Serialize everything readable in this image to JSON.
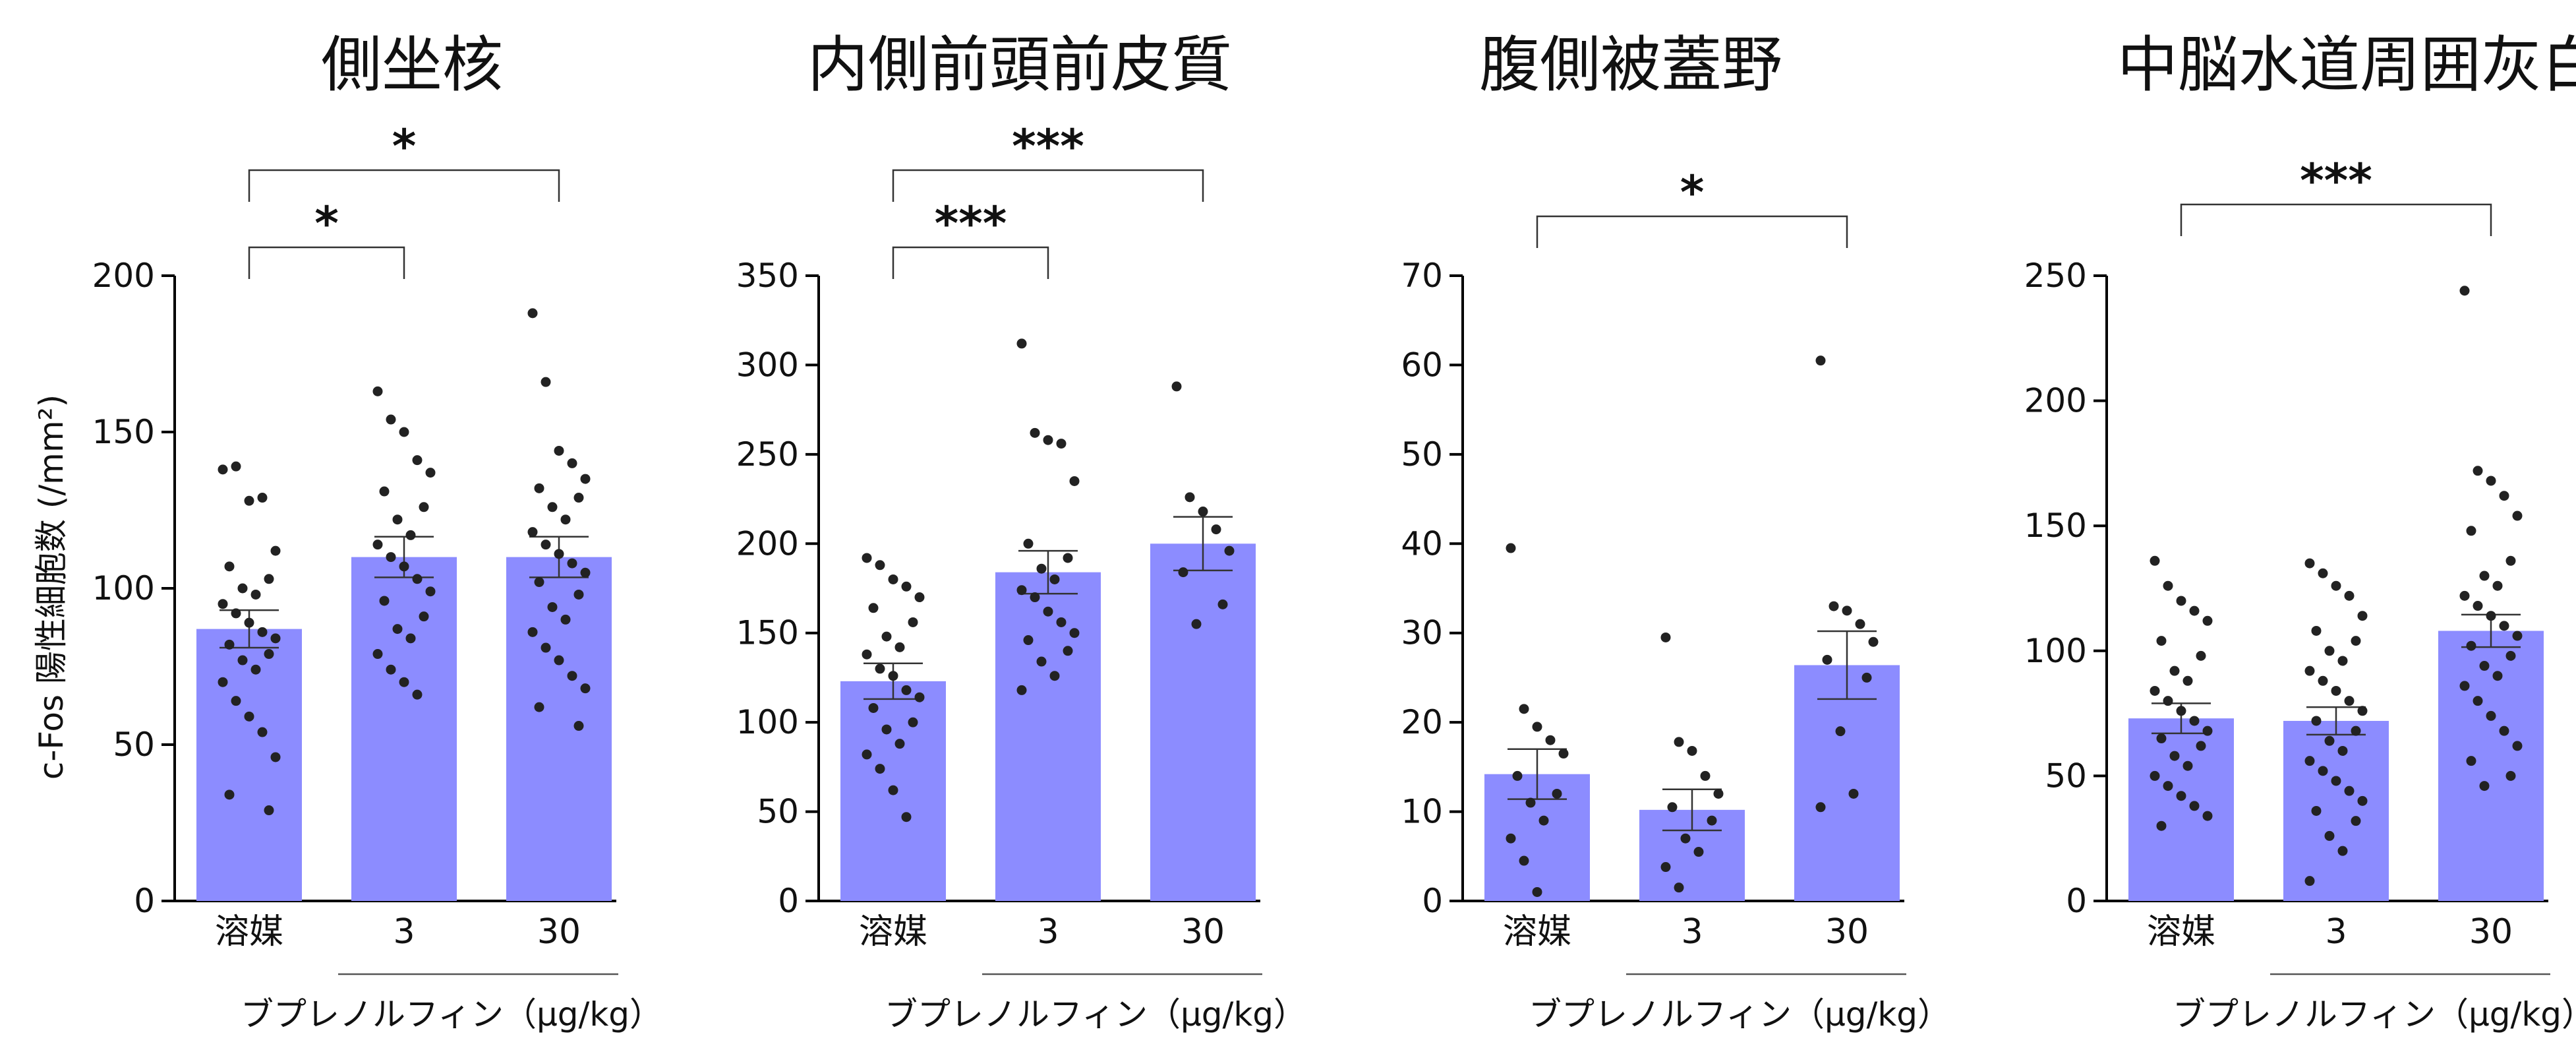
{
  "y_axis_label": "c-Fos 陽性細胞数 (/mm²)",
  "colors": {
    "bar": "#8c8cff",
    "dot": "#222222",
    "axis": "#000000"
  },
  "chart_data": [
    {
      "type": "bar",
      "title": "側坐核",
      "categories": [
        "溶媒",
        "3",
        "30"
      ],
      "drug_label": "ブプレノルフィン（μg/kg）",
      "ylim": [
        0,
        200
      ],
      "yticks": [
        0,
        50,
        100,
        150,
        200
      ],
      "values": [
        87,
        110,
        110
      ],
      "sem": [
        6,
        6.5,
        6.5
      ],
      "points": [
        [
          138,
          139,
          128,
          129,
          112,
          107,
          103,
          100,
          98,
          95,
          92,
          89,
          86,
          84,
          82,
          79,
          77,
          74,
          70,
          64,
          59,
          54,
          46,
          34,
          29
        ],
        [
          163,
          154,
          150,
          141,
          137,
          131,
          126,
          122,
          117,
          114,
          110,
          107,
          103,
          99,
          96,
          91,
          87,
          84,
          79,
          74,
          70,
          66
        ],
        [
          188,
          166,
          144,
          140,
          135,
          132,
          129,
          126,
          122,
          118,
          114,
          111,
          108,
          105,
          102,
          98,
          94,
          90,
          86,
          81,
          77,
          72,
          68,
          62,
          56
        ]
      ],
      "significance": [
        {
          "from": 0,
          "to": 1,
          "label": "*"
        },
        {
          "from": 0,
          "to": 2,
          "label": "*"
        }
      ]
    },
    {
      "type": "bar",
      "title": "内側前頭前皮質",
      "categories": [
        "溶媒",
        "3",
        "30"
      ],
      "drug_label": "ブプレノルフィン（μg/kg）",
      "ylim": [
        0,
        350
      ],
      "yticks": [
        0,
        50,
        100,
        150,
        200,
        250,
        300,
        350
      ],
      "values": [
        123,
        184,
        200
      ],
      "sem": [
        10,
        12,
        15
      ],
      "points": [
        [
          192,
          188,
          180,
          176,
          170,
          164,
          156,
          148,
          142,
          138,
          130,
          126,
          118,
          114,
          108,
          100,
          96,
          88,
          82,
          74,
          62,
          47
        ],
        [
          312,
          262,
          258,
          256,
          235,
          200,
          192,
          186,
          180,
          174,
          170,
          162,
          156,
          150,
          146,
          140,
          134,
          126,
          118
        ],
        [
          288,
          226,
          218,
          208,
          196,
          184,
          166,
          155
        ]
      ],
      "significance": [
        {
          "from": 0,
          "to": 1,
          "label": "***"
        },
        {
          "from": 0,
          "to": 2,
          "label": "***"
        }
      ]
    },
    {
      "type": "bar",
      "title": "腹側被蓋野",
      "categories": [
        "溶媒",
        "3",
        "30"
      ],
      "drug_label": "ブプレノルフィン（μg/kg）",
      "ylim": [
        0,
        70
      ],
      "yticks": [
        0,
        10,
        20,
        30,
        40,
        50,
        60,
        70
      ],
      "values": [
        14.2,
        10.2,
        26.4
      ],
      "sem": [
        2.8,
        2.3,
        3.8
      ],
      "points": [
        [
          39.5,
          21.5,
          19.5,
          18,
          16.5,
          14,
          12,
          11,
          9,
          7,
          4.5,
          1
        ],
        [
          29.5,
          17.8,
          16.8,
          14,
          12,
          10.5,
          9,
          7,
          5.5,
          3.8,
          1.5
        ],
        [
          60.5,
          33,
          32.5,
          31,
          29,
          27,
          25,
          19,
          12,
          10.5
        ]
      ],
      "significance": [
        {
          "from": 0,
          "to": 2,
          "label": "*"
        }
      ]
    },
    {
      "type": "bar",
      "title": "中脳水道周囲灰白質",
      "categories": [
        "溶媒",
        "3",
        "30"
      ],
      "drug_label": "ブプレノルフィン（μg/kg）",
      "ylim": [
        0,
        250
      ],
      "yticks": [
        0,
        50,
        100,
        150,
        200,
        250
      ],
      "values": [
        73,
        72,
        108
      ],
      "sem": [
        6,
        5.5,
        6.5
      ],
      "points": [
        [
          136,
          126,
          120,
          116,
          112,
          104,
          98,
          92,
          88,
          84,
          80,
          76,
          72,
          68,
          65,
          62,
          58,
          54,
          50,
          46,
          42,
          38,
          34,
          30
        ],
        [
          135,
          131,
          126,
          122,
          114,
          108,
          104,
          100,
          96,
          92,
          88,
          84,
          80,
          76,
          72,
          68,
          64,
          60,
          56,
          52,
          48,
          44,
          40,
          36,
          32,
          26,
          20,
          8
        ],
        [
          244,
          172,
          168,
          162,
          154,
          148,
          136,
          130,
          126,
          122,
          118,
          114,
          110,
          106,
          102,
          98,
          94,
          90,
          86,
          80,
          74,
          68,
          62,
          56,
          50,
          46
        ]
      ],
      "significance": [
        {
          "from": 0,
          "to": 2,
          "label": "***"
        }
      ]
    }
  ]
}
